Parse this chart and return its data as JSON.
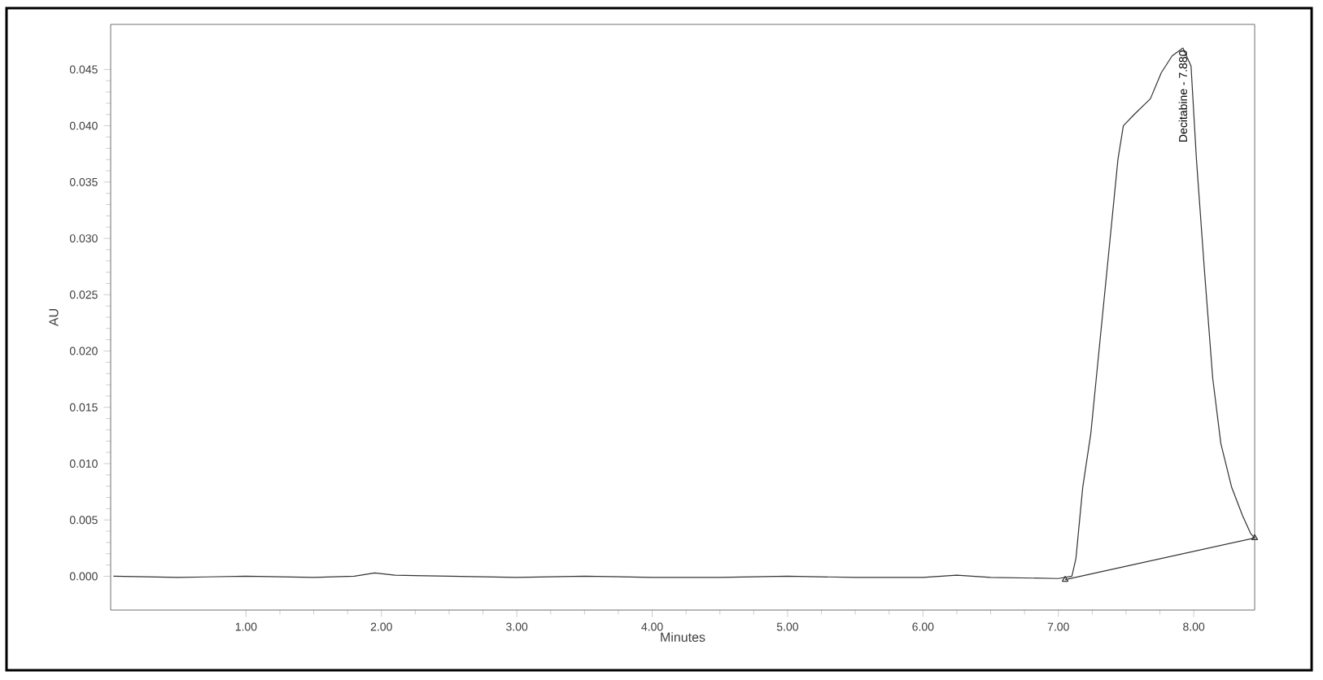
{
  "chart_data": {
    "type": "line",
    "xlabel": "Minutes",
    "ylabel": "AU",
    "xlim": [
      0,
      8.45
    ],
    "ylim": [
      -0.003,
      0.049
    ],
    "xticks": [
      {
        "value": 1,
        "label": "1.00"
      },
      {
        "value": 2,
        "label": "2.00"
      },
      {
        "value": 3,
        "label": "3.00"
      },
      {
        "value": 4,
        "label": "4.00"
      },
      {
        "value": 5,
        "label": "5.00"
      },
      {
        "value": 6,
        "label": "6.00"
      },
      {
        "value": 7,
        "label": "7.00"
      },
      {
        "value": 8,
        "label": "8.00"
      }
    ],
    "yticks": [
      {
        "value": 0,
        "label": "0.000"
      },
      {
        "value": 0.005,
        "label": "0.005"
      },
      {
        "value": 0.01,
        "label": "0.010"
      },
      {
        "value": 0.015,
        "label": "0.015"
      },
      {
        "value": 0.02,
        "label": "0.020"
      },
      {
        "value": 0.025,
        "label": "0.025"
      },
      {
        "value": 0.03,
        "label": "0.030"
      },
      {
        "value": 0.035,
        "label": "0.035"
      },
      {
        "value": 0.04,
        "label": "0.040"
      },
      {
        "value": 0.045,
        "label": "0.045"
      }
    ],
    "series": [
      {
        "color": "#333333",
        "x": [
          0.02,
          0.5,
          1.0,
          1.5,
          1.8,
          1.95,
          2.1,
          2.5,
          3.0,
          3.5,
          4.0,
          4.5,
          5.0,
          5.5,
          6.0,
          6.25,
          6.5,
          7.0,
          7.1,
          7.13,
          7.18,
          7.24,
          7.3,
          7.38,
          7.44,
          7.48,
          7.56,
          7.68,
          7.76,
          7.84,
          7.92,
          7.98,
          8.02,
          8.08,
          8.14,
          8.2,
          8.28,
          8.36,
          8.42,
          8.45
        ],
        "values": [
          0.0,
          -0.0001,
          0.0,
          -0.0001,
          0.0,
          0.0003,
          0.0001,
          0.0,
          -0.0001,
          0.0,
          -0.0001,
          -0.0001,
          0.0,
          -0.0001,
          -0.0001,
          0.0001,
          -0.0001,
          -0.0002,
          0.0,
          0.0016,
          0.0079,
          0.0127,
          0.02,
          0.0297,
          0.037,
          0.04,
          0.041,
          0.0424,
          0.0447,
          0.0462,
          0.0469,
          0.0453,
          0.037,
          0.027,
          0.0176,
          0.0118,
          0.0079,
          0.0054,
          0.0038,
          0.0034
        ]
      },
      {
        "color": "#333333",
        "marker": "triangle",
        "x": [
          7.05,
          8.45
        ],
        "values": [
          -0.0003,
          0.0034
        ]
      }
    ],
    "annotations": [
      {
        "text": "Decitabine - 7.880",
        "x": 7.92,
        "y": 0.0469
      }
    ]
  }
}
